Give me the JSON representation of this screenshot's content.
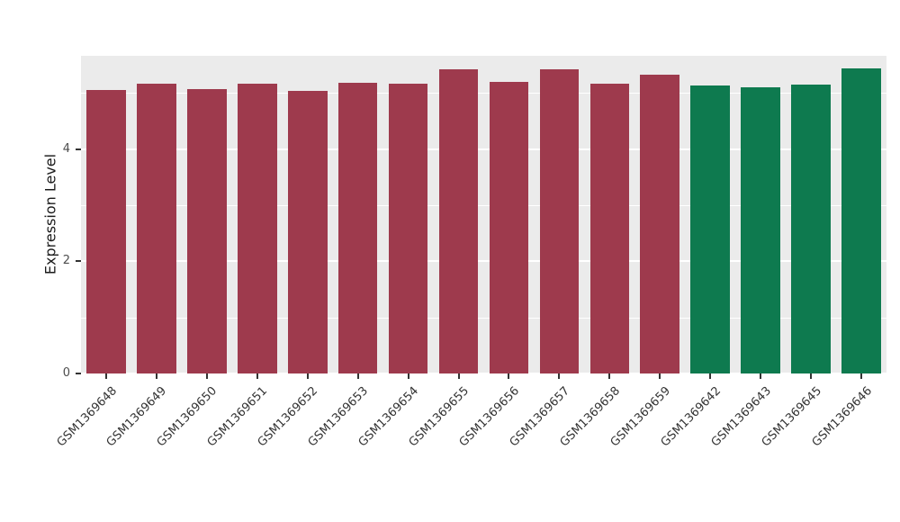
{
  "chart_data": {
    "type": "bar",
    "title": "",
    "xlabel": "",
    "ylabel": "Expression Level",
    "legend": "none",
    "grid": true,
    "panel_bg": "#EBEBEB",
    "grid_color": "#FFFFFF",
    "ylim": [
      0,
      5.66
    ],
    "yticks": [
      0,
      2,
      4
    ],
    "minor_gridlines": [
      1,
      3,
      5
    ],
    "categories": [
      "GSM1369648",
      "GSM1369649",
      "GSM1369650",
      "GSM1369651",
      "GSM1369652",
      "GSM1369653",
      "GSM1369654",
      "GSM1369655",
      "GSM1369656",
      "GSM1369657",
      "GSM1369658",
      "GSM1369659",
      "GSM1369642",
      "GSM1369643",
      "GSM1369645",
      "GSM1369646"
    ],
    "values": [
      5.05,
      5.16,
      5.06,
      5.16,
      5.04,
      5.18,
      5.16,
      5.42,
      5.19,
      5.42,
      5.17,
      5.33,
      5.13,
      5.1,
      5.15,
      5.43
    ],
    "bar_colors": [
      "#9E3A4D",
      "#9E3A4D",
      "#9E3A4D",
      "#9E3A4D",
      "#9E3A4D",
      "#9E3A4D",
      "#9E3A4D",
      "#9E3A4D",
      "#9E3A4D",
      "#9E3A4D",
      "#9E3A4D",
      "#9E3A4D",
      "#0E7A4F",
      "#0E7A4F",
      "#0E7A4F",
      "#0E7A4F"
    ],
    "group_colors": {
      "maroon_group": "#9E3A4D",
      "green_group": "#0E7A4F"
    }
  }
}
